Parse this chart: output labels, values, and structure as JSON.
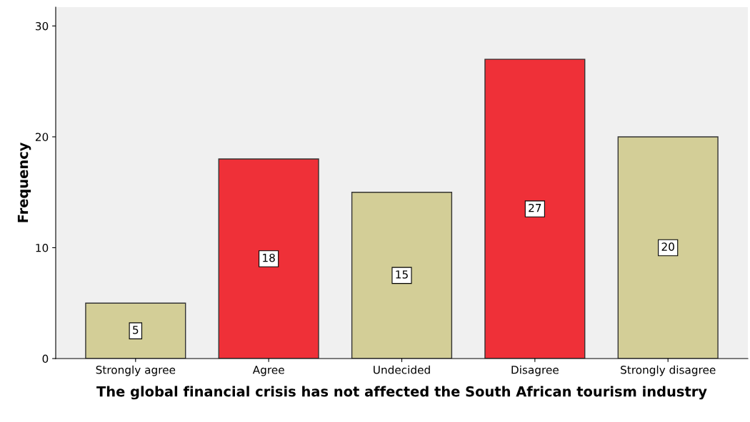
{
  "chart_data": {
    "type": "bar",
    "xlabel": "The global financial crisis has not affected the South African tourism industry",
    "ylabel": "Frequency",
    "categories": [
      "Strongly agree",
      "Agree",
      "Undecided",
      "Disagree",
      "Strongly disagree"
    ],
    "values": [
      5,
      18,
      15,
      27,
      20
    ],
    "colors": [
      "#d3ce97",
      "#ef3038",
      "#d3ce97",
      "#ef3038",
      "#d3ce97"
    ],
    "ylim": [
      0,
      31.7
    ],
    "yticks": [
      0,
      10,
      20,
      30
    ],
    "data_labels": true,
    "grid": false,
    "legend": false
  }
}
